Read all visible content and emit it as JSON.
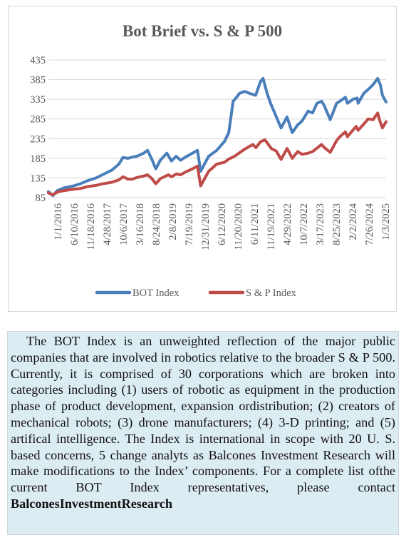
{
  "chart_data": {
    "type": "line",
    "title": "Bot Brief vs. S & P 500",
    "xlabel": "",
    "ylabel": "",
    "ylim": [
      85,
      435
    ],
    "y_ticks": [
      85,
      135,
      185,
      235,
      285,
      335,
      385,
      435
    ],
    "x_ticks": [
      "1/1/2016",
      "6/10/2016",
      "11/18/2016",
      "4/28/2017",
      "10/6/2017",
      "3/16/2018",
      "8/24/2018",
      "2/8/2019",
      "7/19/2019",
      "12/31/2019",
      "6/12/2020",
      "11/20/2020",
      "6/11/2021",
      "11/19/2021",
      "4/29/2022",
      "10/7/2022",
      "3/17/2023",
      "8/25/2023",
      "2/2/2024",
      "7/26/2024",
      "1/3/2025"
    ],
    "x_domain": [
      "2016-01-01",
      "2025-05-15"
    ],
    "legend_position": "bottom",
    "series": [
      {
        "name": "BOT Index",
        "color": "#4a7ebb",
        "points": [
          [
            "2016-01-01",
            100
          ],
          [
            "2016-02-15",
            90
          ],
          [
            "2016-04-01",
            103
          ],
          [
            "2016-06-10",
            110
          ],
          [
            "2016-09-01",
            114
          ],
          [
            "2016-11-18",
            120
          ],
          [
            "2017-02-01",
            128
          ],
          [
            "2017-04-28",
            135
          ],
          [
            "2017-07-01",
            143
          ],
          [
            "2017-10-06",
            155
          ],
          [
            "2017-12-15",
            170
          ],
          [
            "2018-01-25",
            187
          ],
          [
            "2018-03-16",
            185
          ],
          [
            "2018-05-01",
            188
          ],
          [
            "2018-06-15",
            190
          ],
          [
            "2018-08-24",
            198
          ],
          [
            "2018-10-01",
            205
          ],
          [
            "2018-11-15",
            182
          ],
          [
            "2018-12-24",
            158
          ],
          [
            "2019-02-08",
            180
          ],
          [
            "2019-04-15",
            198
          ],
          [
            "2019-06-01",
            178
          ],
          [
            "2019-07-19",
            190
          ],
          [
            "2019-09-01",
            180
          ],
          [
            "2019-10-20",
            188
          ],
          [
            "2019-12-31",
            198
          ],
          [
            "2020-02-19",
            205
          ],
          [
            "2020-03-23",
            152
          ],
          [
            "2020-06-12",
            190
          ],
          [
            "2020-09-01",
            205
          ],
          [
            "2020-11-20",
            228
          ],
          [
            "2021-01-01",
            250
          ],
          [
            "2021-02-15",
            330
          ],
          [
            "2021-03-15",
            338
          ],
          [
            "2021-04-20",
            350
          ],
          [
            "2021-06-11",
            355
          ],
          [
            "2021-08-01",
            350
          ],
          [
            "2021-10-01",
            345
          ],
          [
            "2021-11-19",
            380
          ],
          [
            "2021-12-15",
            388
          ],
          [
            "2022-01-25",
            350
          ],
          [
            "2022-03-01",
            325
          ],
          [
            "2022-04-29",
            290
          ],
          [
            "2022-06-16",
            262
          ],
          [
            "2022-08-15",
            290
          ],
          [
            "2022-10-07",
            250
          ],
          [
            "2022-12-01",
            270
          ],
          [
            "2023-01-15",
            280
          ],
          [
            "2023-03-17",
            305
          ],
          [
            "2023-05-01",
            300
          ],
          [
            "2023-06-15",
            325
          ],
          [
            "2023-07-31",
            330
          ],
          [
            "2023-08-25",
            320
          ],
          [
            "2023-10-27",
            283
          ],
          [
            "2023-12-31",
            325
          ],
          [
            "2024-02-02",
            330
          ],
          [
            "2024-03-28",
            340
          ],
          [
            "2024-04-19",
            325
          ],
          [
            "2024-06-15",
            335
          ],
          [
            "2024-07-26",
            338
          ],
          [
            "2024-08-05",
            325
          ],
          [
            "2024-10-01",
            350
          ],
          [
            "2024-11-15",
            360
          ],
          [
            "2025-01-03",
            372
          ],
          [
            "2025-02-19",
            388
          ],
          [
            "2025-03-20",
            370
          ],
          [
            "2025-04-08",
            345
          ],
          [
            "2025-05-15",
            328
          ]
        ]
      },
      {
        "name": "S & P Index",
        "color": "#be4b48",
        "points": [
          [
            "2016-01-01",
            97
          ],
          [
            "2016-02-11",
            92
          ],
          [
            "2016-04-01",
            99
          ],
          [
            "2016-06-10",
            103
          ],
          [
            "2016-09-01",
            106
          ],
          [
            "2016-11-18",
            108
          ],
          [
            "2017-02-01",
            113
          ],
          [
            "2017-04-28",
            116
          ],
          [
            "2017-07-01",
            120
          ],
          [
            "2017-10-06",
            124
          ],
          [
            "2017-12-15",
            130
          ],
          [
            "2018-01-26",
            138
          ],
          [
            "2018-03-16",
            132
          ],
          [
            "2018-05-01",
            132
          ],
          [
            "2018-06-15",
            136
          ],
          [
            "2018-08-24",
            140
          ],
          [
            "2018-10-01",
            143
          ],
          [
            "2018-11-15",
            133
          ],
          [
            "2018-12-24",
            120
          ],
          [
            "2019-02-08",
            133
          ],
          [
            "2019-04-30",
            143
          ],
          [
            "2019-06-03",
            138
          ],
          [
            "2019-07-19",
            145
          ],
          [
            "2019-09-01",
            143
          ],
          [
            "2019-10-20",
            150
          ],
          [
            "2019-12-31",
            158
          ],
          [
            "2020-02-19",
            165
          ],
          [
            "2020-03-23",
            115
          ],
          [
            "2020-06-12",
            152
          ],
          [
            "2020-09-01",
            170
          ],
          [
            "2020-11-20",
            175
          ],
          [
            "2021-01-01",
            183
          ],
          [
            "2021-03-01",
            190
          ],
          [
            "2021-06-11",
            208
          ],
          [
            "2021-09-02",
            220
          ],
          [
            "2021-10-04",
            212
          ],
          [
            "2021-11-19",
            227
          ],
          [
            "2022-01-03",
            232
          ],
          [
            "2022-03-08",
            210
          ],
          [
            "2022-04-29",
            203
          ],
          [
            "2022-06-16",
            182
          ],
          [
            "2022-08-16",
            210
          ],
          [
            "2022-10-07",
            185
          ],
          [
            "2022-12-01",
            202
          ],
          [
            "2023-01-15",
            195
          ],
          [
            "2023-03-17",
            198
          ],
          [
            "2023-05-01",
            202
          ],
          [
            "2023-07-31",
            220
          ],
          [
            "2023-08-25",
            213
          ],
          [
            "2023-10-27",
            200
          ],
          [
            "2023-12-31",
            230
          ],
          [
            "2024-02-02",
            240
          ],
          [
            "2024-03-28",
            252
          ],
          [
            "2024-04-19",
            240
          ],
          [
            "2024-07-16",
            266
          ],
          [
            "2024-08-05",
            256
          ],
          [
            "2024-10-01",
            272
          ],
          [
            "2024-11-15",
            285
          ],
          [
            "2025-01-03",
            283
          ],
          [
            "2025-02-19",
            300
          ],
          [
            "2025-03-13",
            280
          ],
          [
            "2025-04-08",
            262
          ],
          [
            "2025-05-15",
            278
          ]
        ]
      }
    ]
  },
  "description": {
    "body": "The BOT Index is an unweighted reflection of the major public companies that are involved in robotics relative to the broader S & P 500. Currently, it is comprised of 30 corporations which are broken into categories including (1) users of robotic as equipment in the production phase of product development, expansion ordistribution; (2) creators of mechanical robots; (3) drone manufacturers; (4) 3-D printing; and (5) artifical intelligence. The Index is international in scope with 20 U. S. based concerns, 5 change analyts as Balcones Investment Research will make modifications to the Index’ components. For a  complete list ofthe current   BOT   Index   representatives,   please   contact ",
    "bold": "BalconesInvestmentResearch"
  }
}
